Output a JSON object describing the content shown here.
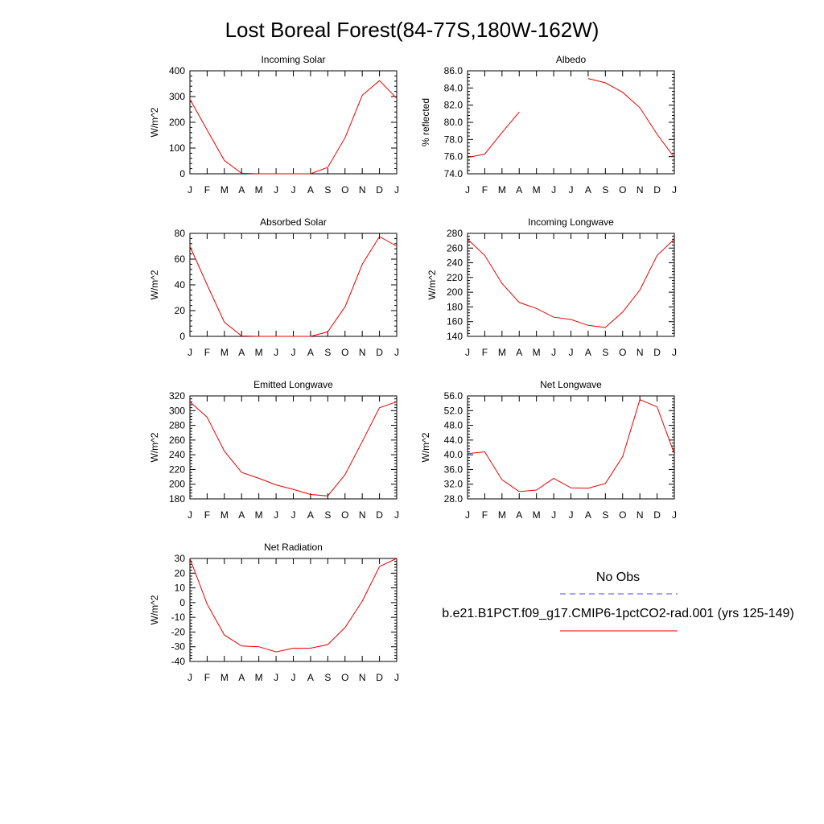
{
  "figure": {
    "title": "Lost Boreal Forest(84-77S,180W-162W)"
  },
  "legend": {
    "obs_label": "No Obs",
    "obs_color": "#4a4ae6",
    "model_label": "b.e21.B1PCT.f09_g17.CMIP6-1pctCO2-rad.001 (yrs 125-149)",
    "model_color": "#e60000"
  },
  "chart_data": [
    {
      "type": "line",
      "title": "Incoming Solar",
      "ylabel": "W/m^2",
      "ylim": [
        0,
        400
      ],
      "yticks": [
        0,
        100,
        200,
        300,
        400
      ],
      "ytick_labels": [
        "0",
        "100",
        "200",
        "300",
        "400"
      ],
      "categories": [
        "J",
        "F",
        "M",
        "A",
        "M",
        "J",
        "J",
        "A",
        "S",
        "O",
        "N",
        "D",
        "J"
      ],
      "series": [
        {
          "values": [
            290,
            170,
            52,
            2,
            0,
            0,
            0,
            0,
            25,
            140,
            305,
            362,
            293
          ]
        }
      ]
    },
    {
      "type": "line",
      "title": "Albedo",
      "ylabel": "% reflected",
      "ylim": [
        74,
        86
      ],
      "yticks": [
        74,
        76,
        78,
        80,
        82,
        84,
        86
      ],
      "ytick_labels": [
        "74.0",
        "76.0",
        "78.0",
        "80.0",
        "82.0",
        "84.0",
        "86.0"
      ],
      "categories": [
        "J",
        "F",
        "M",
        "A",
        "M",
        "J",
        "J",
        "A",
        "S",
        "O",
        "N",
        "D",
        "J"
      ],
      "series": [
        {
          "values": [
            75.9,
            76.3,
            78.8,
            81.2,
            null,
            null,
            null,
            85.1,
            84.6,
            83.5,
            81.7,
            78.6,
            75.9
          ]
        }
      ]
    },
    {
      "type": "line",
      "title": "Absorbed Solar",
      "ylabel": "W/m^2",
      "ylim": [
        0,
        80
      ],
      "yticks": [
        0,
        20,
        40,
        60,
        80
      ],
      "ytick_labels": [
        "0",
        "20",
        "40",
        "60",
        "80"
      ],
      "categories": [
        "J",
        "F",
        "M",
        "A",
        "M",
        "J",
        "J",
        "A",
        "S",
        "O",
        "N",
        "D",
        "J"
      ],
      "series": [
        {
          "values": [
            70,
            40,
            11,
            0.3,
            0,
            0,
            0,
            0,
            3.5,
            23,
            56,
            77.5,
            70
          ]
        }
      ]
    },
    {
      "type": "line",
      "title": "Incoming Longwave",
      "ylabel": "W/m^2",
      "ylim": [
        140,
        280
      ],
      "yticks": [
        140,
        160,
        180,
        200,
        220,
        240,
        260,
        280
      ],
      "ytick_labels": [
        "140",
        "160",
        "180",
        "200",
        "220",
        "240",
        "260",
        "280"
      ],
      "categories": [
        "J",
        "F",
        "M",
        "A",
        "M",
        "J",
        "J",
        "A",
        "S",
        "O",
        "N",
        "D",
        "J"
      ],
      "series": [
        {
          "values": [
            272,
            250,
            212,
            186,
            178,
            166,
            163,
            155,
            152,
            173,
            203,
            250,
            272
          ]
        }
      ]
    },
    {
      "type": "line",
      "title": "Emitted Longwave",
      "ylabel": "W/m^2",
      "ylim": [
        180,
        320
      ],
      "yticks": [
        180,
        200,
        220,
        240,
        260,
        280,
        300,
        320
      ],
      "ytick_labels": [
        "180",
        "200",
        "220",
        "240",
        "260",
        "280",
        "300",
        "320"
      ],
      "categories": [
        "J",
        "F",
        "M",
        "A",
        "M",
        "J",
        "J",
        "A",
        "S",
        "O",
        "N",
        "D",
        "J"
      ],
      "series": [
        {
          "values": [
            312,
            291,
            245,
            216,
            208,
            199,
            193,
            186,
            184,
            213,
            258,
            304,
            312
          ]
        }
      ]
    },
    {
      "type": "line",
      "title": "Net Longwave",
      "ylabel": "W/m^2",
      "ylim": [
        28,
        56
      ],
      "yticks": [
        28,
        32,
        36,
        40,
        44,
        48,
        52,
        56
      ],
      "ytick_labels": [
        "28.0",
        "32.0",
        "36.0",
        "40.0",
        "44.0",
        "48.0",
        "52.0",
        "56.0"
      ],
      "categories": [
        "J",
        "F",
        "M",
        "A",
        "M",
        "J",
        "J",
        "A",
        "S",
        "O",
        "N",
        "D",
        "J"
      ],
      "series": [
        {
          "values": [
            40.3,
            40.8,
            33.2,
            30.0,
            30.4,
            33.6,
            31.0,
            30.9,
            32.2,
            39.5,
            55.0,
            53.0,
            40.3
          ]
        }
      ]
    },
    {
      "type": "line",
      "title": "Net Radiation",
      "ylabel": "W/m^2",
      "ylim": [
        -40,
        30
      ],
      "yticks": [
        -40,
        -30,
        -20,
        -10,
        0,
        10,
        20,
        30
      ],
      "ytick_labels": [
        "-40",
        "-30",
        "-20",
        "-10",
        "0",
        "10",
        "20",
        "30"
      ],
      "categories": [
        "J",
        "F",
        "M",
        "A",
        "M",
        "J",
        "J",
        "A",
        "S",
        "O",
        "N",
        "D",
        "J"
      ],
      "series": [
        {
          "values": [
            30,
            -1,
            -22,
            -29.5,
            -30,
            -33.5,
            -31,
            -31,
            -28.5,
            -17,
            1,
            24.5,
            30
          ]
        }
      ]
    }
  ]
}
